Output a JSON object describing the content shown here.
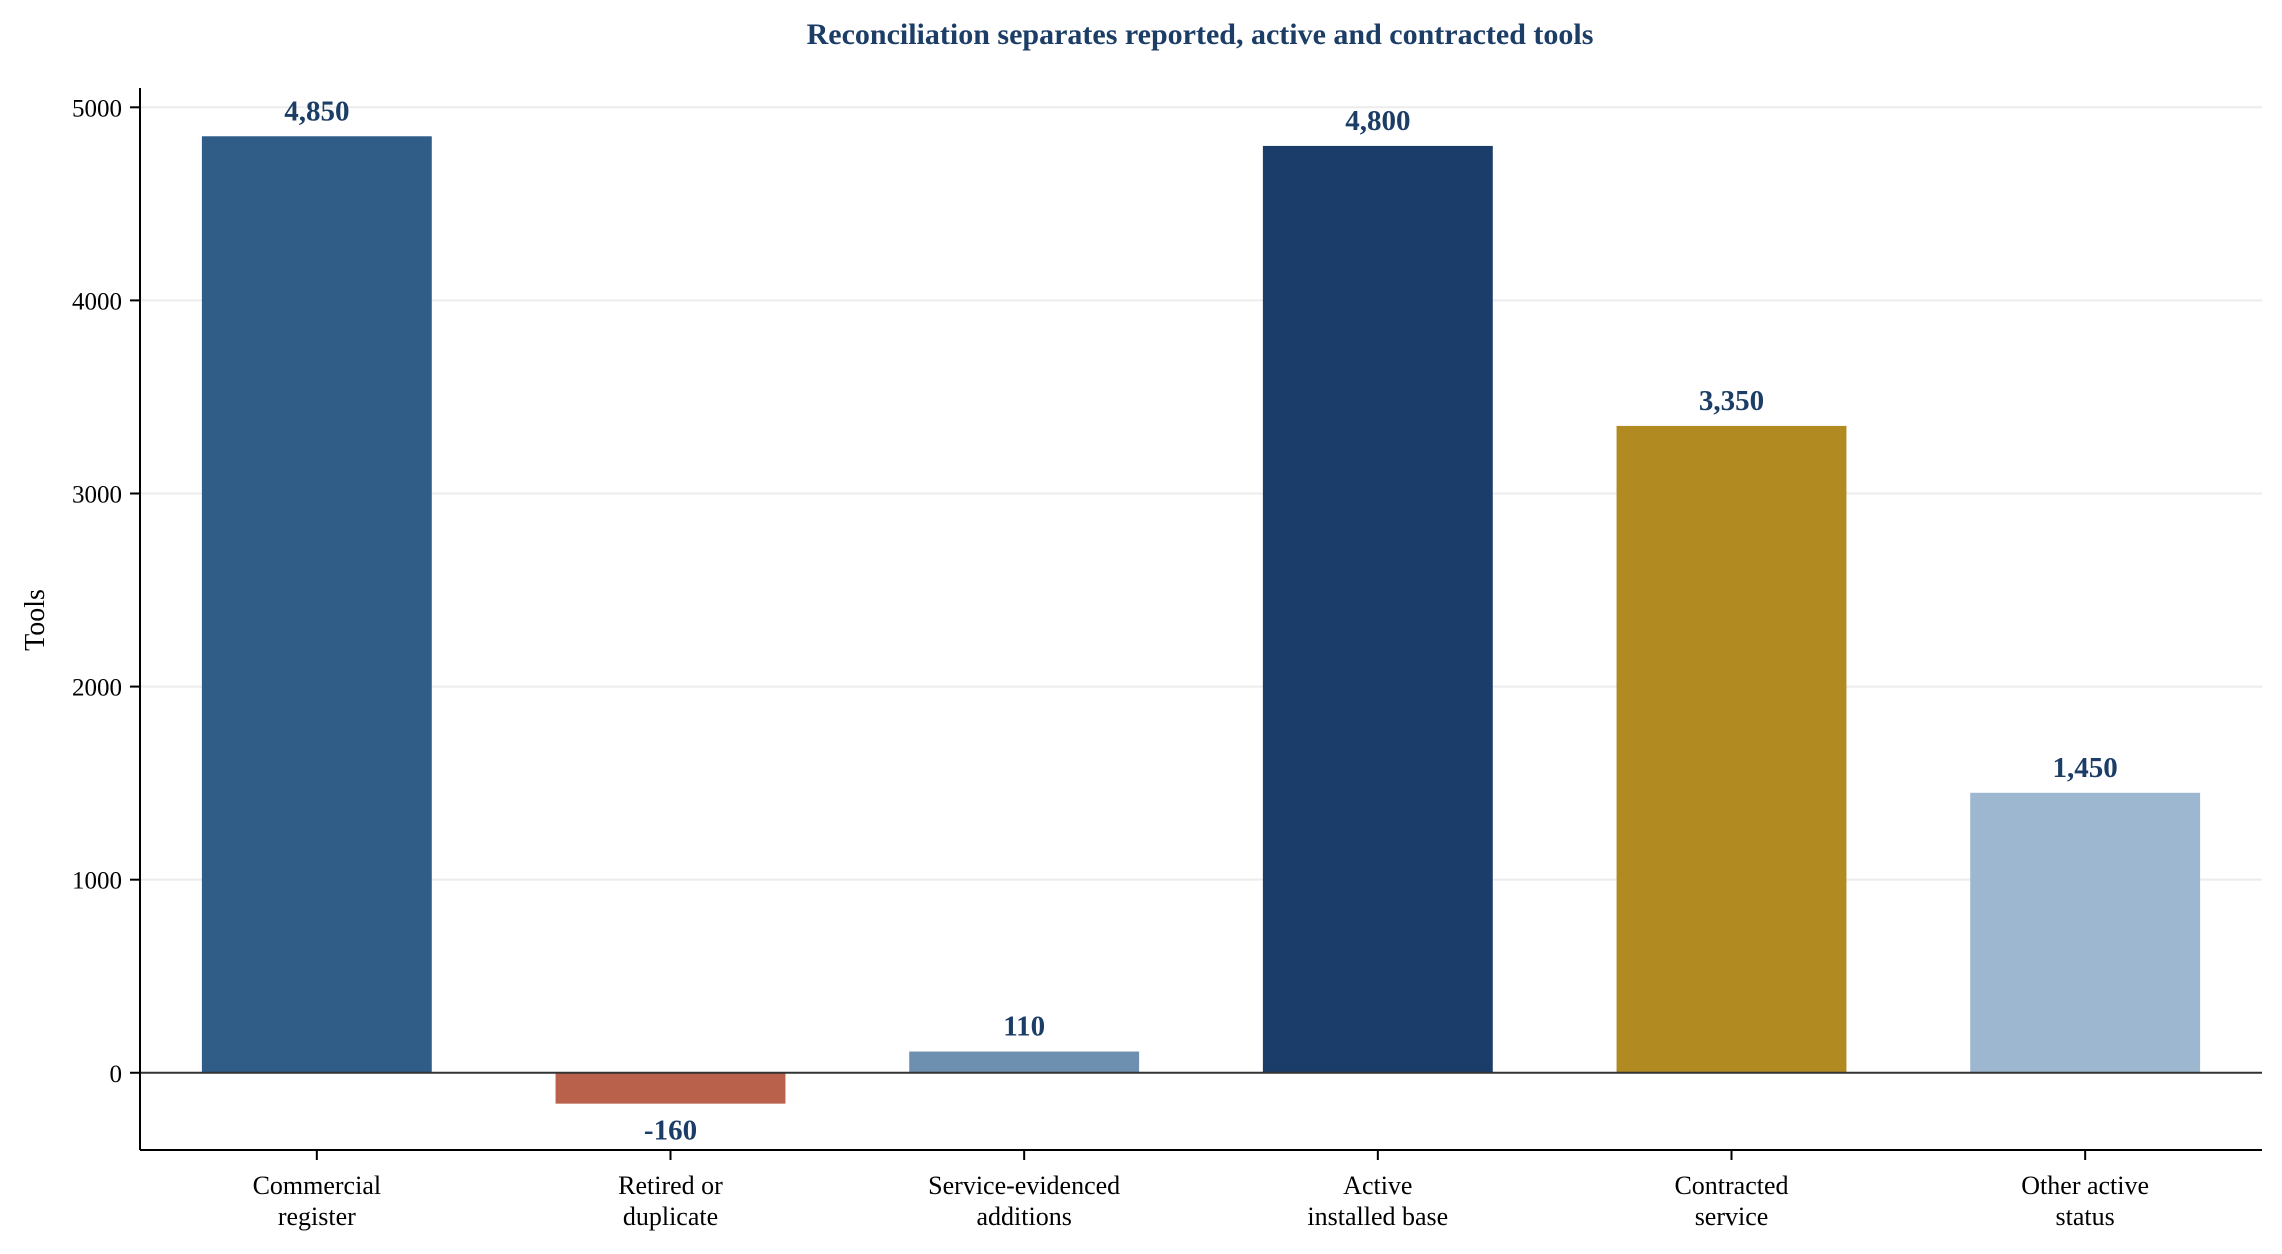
{
  "chart_data": {
    "type": "bar",
    "title": "Reconciliation separates reported, active and contracted tools",
    "xlabel": "",
    "ylabel": "Tools",
    "ylim": [
      -400,
      5100
    ],
    "yticks": [
      0,
      1000,
      2000,
      3000,
      4000,
      5000
    ],
    "grid": "horizontal",
    "categories": [
      [
        "Commercial",
        "register"
      ],
      [
        "Retired or",
        "duplicate"
      ],
      [
        "Service-evidenced",
        "additions"
      ],
      [
        "Active",
        "installed base"
      ],
      [
        "Contracted",
        "service"
      ],
      [
        "Other active",
        "status"
      ]
    ],
    "values": [
      4850,
      -160,
      110,
      4800,
      3350,
      1450
    ],
    "value_labels": [
      "4,850",
      "-160",
      "110",
      "4,800",
      "3,350",
      "1,450"
    ],
    "colors": [
      "#2f5d87",
      "#b9614a",
      "#6e90b0",
      "#1b3d69",
      "#b28a22",
      "#9db7d0"
    ]
  }
}
